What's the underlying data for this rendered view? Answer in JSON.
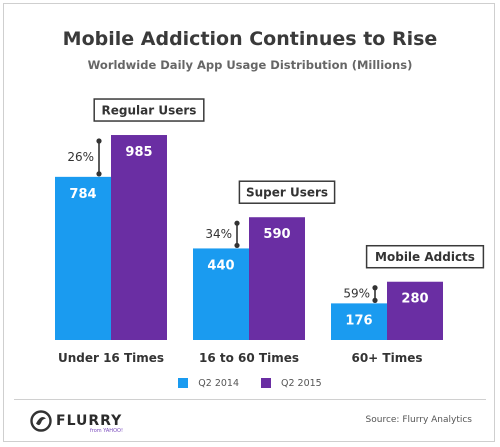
{
  "title": "Mobile Addiction Continues to Rise",
  "subtitle": "Worldwide Daily App Usage Distribution (Millions)",
  "colors": {
    "q2_2014": "#1a9bf0",
    "q2_2015": "#6a2ea3",
    "label_box_border": "#3a3a3a",
    "logo_mark": "#333333"
  },
  "chart_data": {
    "type": "bar",
    "title": "Mobile Addiction Continues to Rise",
    "subtitle": "Worldwide Daily App Usage Distribution (Millions)",
    "xlabel": "",
    "ylabel": "",
    "categories": [
      "Under 16 Times",
      "16 to 60 Times",
      "60+ Times"
    ],
    "group_labels": [
      "Regular Users",
      "Super Users",
      "Mobile Addicts"
    ],
    "series": [
      {
        "name": "Q2 2014",
        "values": [
          784,
          440,
          176
        ]
      },
      {
        "name": "Q2 2015",
        "values": [
          985,
          590,
          280
        ]
      }
    ],
    "growth_labels": [
      "26%",
      "34%",
      "59%"
    ],
    "ylim": [
      0,
      1000
    ],
    "grid": false,
    "legend": "bottom"
  },
  "legend": [
    {
      "label": "Q2 2014",
      "color": "#1a9bf0"
    },
    {
      "label": "Q2 2015",
      "color": "#6a2ea3"
    }
  ],
  "footer": {
    "brand": "FLURRY",
    "brand_sub": "from YAHOO!",
    "source": "Source: Flurry Analytics"
  }
}
